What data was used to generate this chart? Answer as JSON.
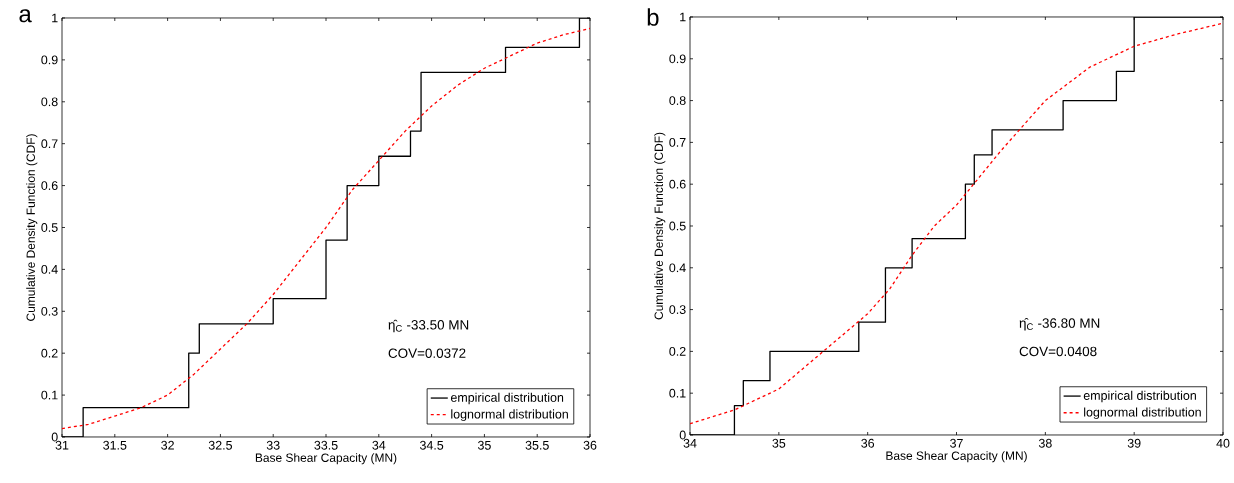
{
  "chart_data": [
    {
      "type": "step",
      "title": "a",
      "xlabel": "Base Shear Capacity (MN)",
      "ylabel": "Cumulative Density Function (CDF)",
      "xlim": [
        31,
        36
      ],
      "ylim": [
        0,
        1
      ],
      "xticks": [
        31,
        31.5,
        32,
        32.5,
        33,
        33.5,
        34,
        34.5,
        35,
        35.5,
        36
      ],
      "yticks": [
        0,
        0.1,
        0.2,
        0.3,
        0.4,
        0.5,
        0.6,
        0.7,
        0.8,
        0.9,
        1
      ],
      "legend": "bottom right",
      "annotations": [
        "η̂$_{C}$ -33.50 MN",
        "COV=0.0372"
      ],
      "series": [
        {
          "name": "empirical distribution",
          "color": "#000000",
          "line_style": "solid",
          "x": [
            31,
            31.2,
            32.2,
            32.3,
            33,
            33.5,
            33.7,
            34,
            34.3,
            34.4,
            35.2,
            35.9,
            36
          ],
          "values": [
            0,
            0.07,
            0.2,
            0.27,
            0.33,
            0.47,
            0.6,
            0.67,
            0.73,
            0.87,
            0.93,
            1,
            1
          ]
        },
        {
          "name": "lognormal distribution",
          "type": "line",
          "color": "#ff0000",
          "line_style": "dashed",
          "x": [
            31,
            31.25,
            31.5,
            31.75,
            32,
            32.25,
            32.5,
            32.75,
            33,
            33.25,
            33.5,
            33.75,
            34,
            34.25,
            34.5,
            34.75,
            35,
            35.25,
            35.5,
            35.75,
            36
          ],
          "values": [
            0.02,
            0.03,
            0.05,
            0.07,
            0.1,
            0.15,
            0.21,
            0.27,
            0.34,
            0.42,
            0.5,
            0.59,
            0.66,
            0.73,
            0.79,
            0.84,
            0.88,
            0.91,
            0.94,
            0.96,
            0.975
          ]
        }
      ]
    },
    {
      "type": "step",
      "title": "b",
      "xlabel": "Base Shear Capacity (MN)",
      "ylabel": "Cumulative Density Function (CDF)",
      "xlim": [
        34,
        40
      ],
      "ylim": [
        0,
        1
      ],
      "xticks": [
        34,
        35,
        36,
        37,
        38,
        39,
        40
      ],
      "yticks": [
        0,
        0.1,
        0.2,
        0.3,
        0.4,
        0.5,
        0.6,
        0.7,
        0.8,
        0.9,
        1
      ],
      "legend": "bottom right",
      "annotations": [
        "η̂$_{C}$ -36.80 MN",
        "COV=0.0408"
      ],
      "series": [
        {
          "name": "empirical distribution",
          "color": "#000000",
          "line_style": "solid",
          "x": [
            34,
            34.5,
            34.6,
            34.9,
            35.9,
            36.2,
            36.5,
            37.1,
            37.2,
            37.4,
            38.2,
            38.8,
            39,
            40
          ],
          "values": [
            0,
            0.07,
            0.13,
            0.2,
            0.27,
            0.4,
            0.47,
            0.6,
            0.67,
            0.73,
            0.8,
            0.87,
            1,
            1
          ]
        },
        {
          "name": "lognormal distribution",
          "type": "line",
          "color": "#ff0000",
          "line_style": "dashed",
          "x": [
            34,
            34.5,
            35,
            35.5,
            36,
            36.25,
            36.5,
            36.75,
            37,
            37.5,
            38,
            38.5,
            39,
            39.5,
            40
          ],
          "values": [
            0.027,
            0.06,
            0.11,
            0.2,
            0.29,
            0.35,
            0.43,
            0.5,
            0.55,
            0.68,
            0.8,
            0.88,
            0.93,
            0.96,
            0.985
          ]
        }
      ]
    }
  ]
}
